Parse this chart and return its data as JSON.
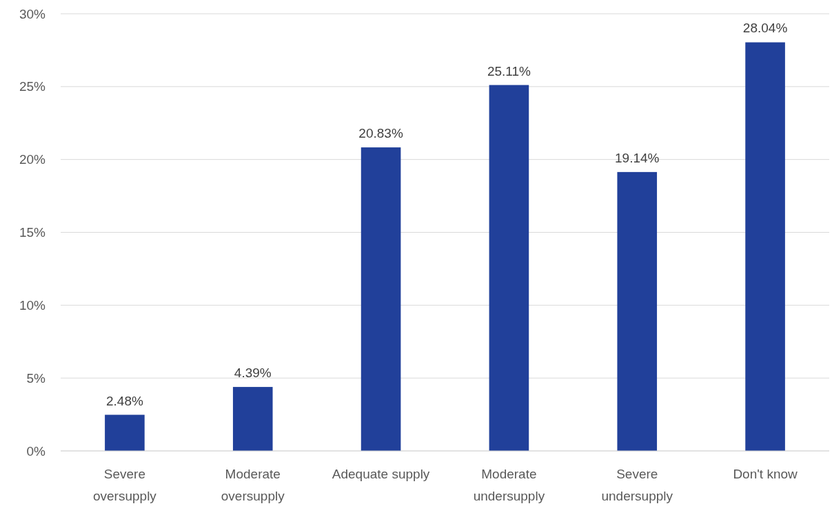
{
  "chart_data": {
    "type": "bar",
    "categories": [
      "Severe\noversupply",
      "Moderate\noversupply",
      "Adequate supply",
      "Moderate\nundersupply",
      "Severe\nundersupply",
      "Don't know"
    ],
    "values": [
      2.48,
      4.39,
      20.83,
      25.11,
      19.14,
      28.04
    ],
    "value_labels": [
      "2.48%",
      "4.39%",
      "20.83%",
      "25.11%",
      "19.14%",
      "28.04%"
    ],
    "color": "#21409a",
    "ylim": [
      0,
      30
    ],
    "yticks": [
      {
        "value": 0,
        "label": "0%"
      },
      {
        "value": 5,
        "label": "5%"
      },
      {
        "value": 10,
        "label": "10%"
      },
      {
        "value": 15,
        "label": "15%"
      },
      {
        "value": 20,
        "label": "20%"
      },
      {
        "value": 25,
        "label": "25%"
      },
      {
        "value": 30,
        "label": "30%"
      }
    ],
    "grid": "y"
  }
}
